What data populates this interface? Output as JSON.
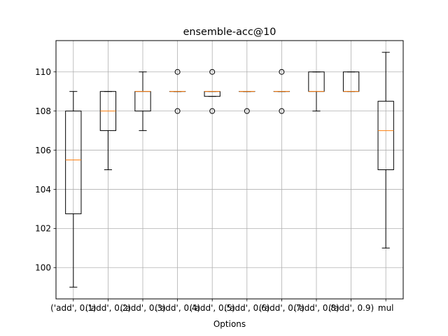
{
  "chart_data": {
    "type": "box",
    "title": "ensemble-acc@10",
    "xlabel": "Options",
    "ylabel": "",
    "categories": [
      "('add', 0.1)",
      "('add', 0.2)",
      "('add', 0.3)",
      "('add', 0.4)",
      "('add', 0.5)",
      "('add', 0.6)",
      "('add', 0.7)",
      "('add', 0.8)",
      "('add', 0.9)",
      "mul"
    ],
    "boxes": [
      {
        "whisker_low": 99,
        "q1": 102.75,
        "median": 105.5,
        "q3": 108,
        "whisker_high": 109,
        "outliers": []
      },
      {
        "whisker_low": 105,
        "q1": 107,
        "median": 108,
        "q3": 109,
        "whisker_high": 109,
        "outliers": []
      },
      {
        "whisker_low": 107,
        "q1": 108,
        "median": 109,
        "q3": 109,
        "whisker_high": 110,
        "outliers": []
      },
      {
        "whisker_low": 109,
        "q1": 109,
        "median": 109,
        "q3": 109,
        "whisker_high": 109,
        "outliers": [
          108,
          110
        ]
      },
      {
        "whisker_low": 108.75,
        "q1": 108.75,
        "median": 109,
        "q3": 109,
        "whisker_high": 109,
        "outliers": [
          108,
          110
        ]
      },
      {
        "whisker_low": 109,
        "q1": 109,
        "median": 109,
        "q3": 109,
        "whisker_high": 109,
        "outliers": [
          108
        ]
      },
      {
        "whisker_low": 109,
        "q1": 109,
        "median": 109,
        "q3": 109,
        "whisker_high": 109,
        "outliers": [
          108,
          110
        ]
      },
      {
        "whisker_low": 108,
        "q1": 109,
        "median": 109,
        "q3": 110,
        "whisker_high": 110,
        "outliers": []
      },
      {
        "whisker_low": 109,
        "q1": 109,
        "median": 109,
        "q3": 110,
        "whisker_high": 110,
        "outliers": []
      },
      {
        "whisker_low": 101,
        "q1": 105,
        "median": 107,
        "q3": 108.5,
        "whisker_high": 111,
        "outliers": []
      }
    ],
    "yticks": [
      100,
      102,
      104,
      106,
      108,
      110
    ],
    "ylim": [
      98.4,
      111.6
    ],
    "grid": true,
    "colors": {
      "box": "#000000",
      "median": "#ff7f0e",
      "grid": "#b0b0b0"
    }
  }
}
